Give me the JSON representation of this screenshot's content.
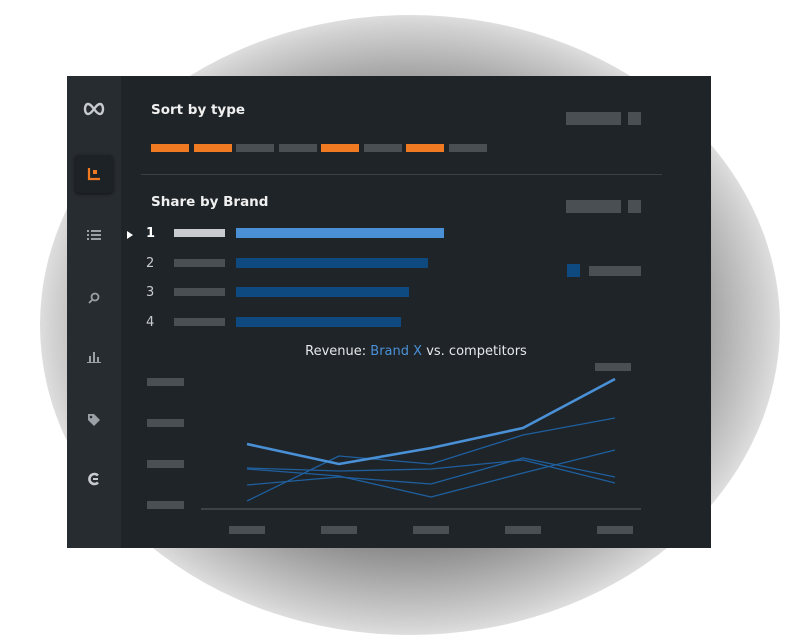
{
  "sidebar": {
    "items": [
      {
        "icon": "infinity-icon"
      },
      {
        "icon": "corner-chart-icon",
        "active": true
      },
      {
        "icon": "list-icon"
      },
      {
        "icon": "search-icon"
      },
      {
        "icon": "bar-chart-icon"
      },
      {
        "icon": "tag-icon"
      },
      {
        "icon": "c-logo-icon"
      }
    ]
  },
  "sort_by_type": {
    "title": "Sort by type",
    "segments": [
      "orange",
      "orange",
      "gray",
      "gray",
      "orange",
      "gray",
      "orange",
      "gray"
    ]
  },
  "share_by_brand": {
    "title": "Share by Brand",
    "selected_rank": "1",
    "rows": [
      {
        "rank": "1",
        "share": 1.0,
        "highlight": true
      },
      {
        "rank": "2",
        "share": 0.925
      },
      {
        "rank": "3",
        "share": 0.83
      },
      {
        "rank": "4",
        "share": 0.795
      }
    ]
  },
  "revenue_chart": {
    "title_prefix": "Revenue: ",
    "title_brand": "Brand X",
    "title_suffix": " vs. competitors"
  },
  "colors": {
    "orange": "#f07a22",
    "segment_gray": "#4a4f54",
    "brand_highlight": "#4a90d6",
    "bar_dark": "#0e4a80",
    "line_competitor": "#1f5f9e",
    "background": "#1f2428"
  },
  "chart_data": {
    "type": "line",
    "x": [
      1,
      2,
      3,
      4,
      5
    ],
    "series": [
      {
        "name": "Brand X",
        "values": [
          65,
          45,
          61,
          81,
          130
        ]
      },
      {
        "name": "",
        "values": [
          8,
          53,
          45,
          74,
          91
        ]
      },
      {
        "name": "",
        "values": [
          40,
          33,
          12,
          36,
          59
        ]
      },
      {
        "name": "",
        "values": [
          41,
          38,
          40,
          49,
          26
        ]
      },
      {
        "name": "",
        "values": [
          24,
          32,
          25,
          51,
          32
        ]
      }
    ],
    "ylim": [
      0,
      140
    ],
    "grid": false,
    "legend": "none",
    "title": "",
    "xlabel": "",
    "ylabel": ""
  }
}
